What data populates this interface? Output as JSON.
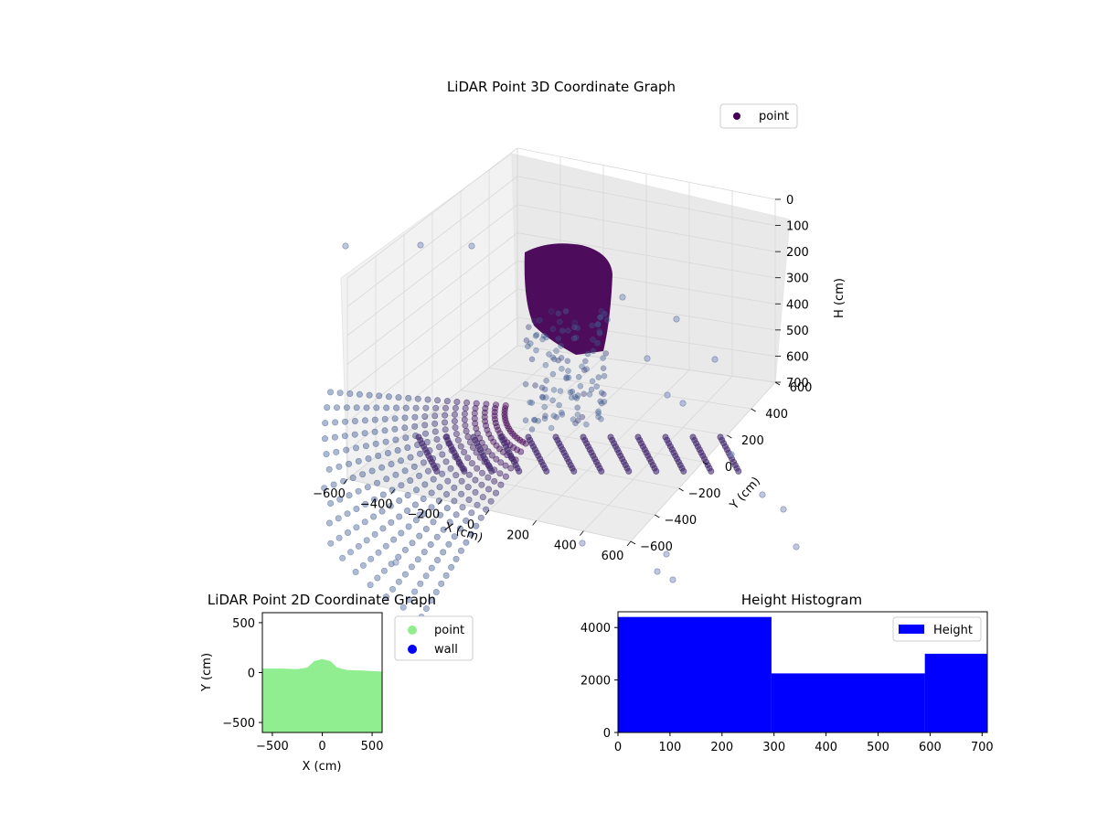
{
  "colors": {
    "point_3d": "#440154",
    "point_2d": "#90ee90",
    "wall_2d": "#0000ff",
    "histogram": "#0000ff",
    "pane": "#f2f2f2",
    "grid": "#d8d8d8"
  },
  "chart_data": [
    {
      "type": "scatter",
      "projection": "3d",
      "title": "LiDAR Point 3D Coordinate Graph",
      "xlabel": "X (cm)",
      "ylabel": "Y (cm)",
      "zlabel": "H (cm)",
      "xlim": [
        -600,
        600
      ],
      "ylim": [
        -600,
        600
      ],
      "zlim": [
        700,
        0
      ],
      "z_axis_inverted": true,
      "grid": true,
      "colormap": "viridis",
      "x_ticks": [
        "−600",
        "−400",
        "−200",
        "0",
        "200",
        "400",
        "600"
      ],
      "y_ticks": [
        "−600",
        "−400",
        "−200",
        "0",
        "200",
        "400",
        "600"
      ],
      "z_ticks": [
        "0",
        "100",
        "200",
        "300",
        "400",
        "500",
        "600",
        "700"
      ],
      "legend": {
        "entries": [
          "point"
        ],
        "placement": "upper-right"
      }
    },
    {
      "type": "scatter",
      "title": "LiDAR Point 2D Coordinate Graph",
      "xlabel": "X (cm)",
      "ylabel": "Y (cm)",
      "xlim": [
        -600,
        600
      ],
      "ylim": [
        -600,
        600
      ],
      "x_ticks": [
        "−500",
        "0",
        "500"
      ],
      "y_ticks": [
        "−500",
        "0",
        "500"
      ],
      "series": [
        {
          "name": "point",
          "color": "#90ee90",
          "region_top_edge": {
            "x": [
              -600,
              -400,
              -250,
              -150,
              -80,
              0,
              80,
              150,
              250,
              400,
              600
            ],
            "y": [
              40,
              40,
              35,
              50,
              115,
              135,
              115,
              50,
              25,
              20,
              10
            ]
          },
          "region_bottom": -600
        },
        {
          "name": "wall",
          "color": "#0000ff",
          "points": []
        }
      ],
      "legend": {
        "entries": [
          "point",
          "wall"
        ],
        "placement": "outside-right"
      }
    },
    {
      "type": "bar",
      "title": "Height Histogram",
      "xlim": [
        0,
        710
      ],
      "ylim": [
        0,
        4600
      ],
      "x_ticks": [
        "0",
        "100",
        "200",
        "300",
        "400",
        "500",
        "600",
        "700"
      ],
      "y_ticks": [
        "0",
        "2000",
        "4000"
      ],
      "series": [
        {
          "name": "Height",
          "color": "#0000ff",
          "bins": [
            [
              0,
              295
            ],
            [
              295,
              590
            ],
            [
              590,
              710
            ]
          ],
          "values": [
            4400,
            2250,
            3000
          ]
        }
      ],
      "legend": {
        "entries": [
          "Height"
        ],
        "placement": "upper-right"
      }
    }
  ]
}
